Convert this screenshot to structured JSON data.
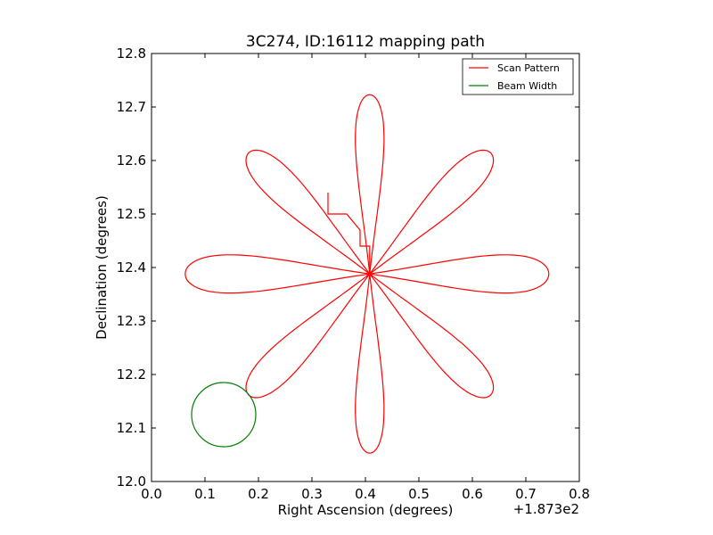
{
  "chart_data": {
    "type": "line",
    "title": "3C274, ID:16112 mapping path",
    "xlabel": "Right Ascension (degrees)",
    "ylabel": "Declination (degrees)",
    "x_offset_label": "+1.873e2",
    "xlim": [
      0.0,
      0.8
    ],
    "ylim": [
      12.0,
      12.8
    ],
    "x_ticks": [
      0.0,
      0.1,
      0.2,
      0.3,
      0.4,
      0.5,
      0.6,
      0.7,
      0.8
    ],
    "x_tick_labels": [
      "0.0",
      "0.1",
      "0.2",
      "0.3",
      "0.4",
      "0.5",
      "0.6",
      "0.7",
      "0.8"
    ],
    "y_ticks": [
      12.0,
      12.1,
      12.2,
      12.3,
      12.4,
      12.5,
      12.6,
      12.7,
      12.8
    ],
    "y_tick_labels": [
      "12.0",
      "12.1",
      "12.2",
      "12.3",
      "12.4",
      "12.5",
      "12.6",
      "12.7",
      "12.8"
    ],
    "legend_position": "top-right",
    "grid": false,
    "series": [
      {
        "name": "Scan Pattern",
        "color": "#ff0000",
        "petals": [
          {
            "angle_deg": 90,
            "length": 0.335,
            "width": 0.03
          },
          {
            "angle_deg": 45,
            "length": 0.32,
            "width": 0.035
          },
          {
            "angle_deg": 0,
            "length": 0.335,
            "width": 0.04
          },
          {
            "angle_deg": -45,
            "length": 0.32,
            "width": 0.035
          },
          {
            "angle_deg": -90,
            "length": 0.335,
            "width": 0.03
          },
          {
            "angle_deg": -135,
            "length": 0.32,
            "width": 0.035
          },
          {
            "angle_deg": 180,
            "length": 0.345,
            "width": 0.04
          },
          {
            "angle_deg": 135,
            "length": 0.32,
            "width": 0.035
          }
        ],
        "center": [
          0.408,
          12.388
        ],
        "step_points": [
          [
            0.408,
            12.388
          ],
          [
            0.408,
            12.44
          ],
          [
            0.39,
            12.44
          ],
          [
            0.39,
            12.47
          ],
          [
            0.365,
            12.5
          ],
          [
            0.345,
            12.5
          ],
          [
            0.33,
            12.5
          ],
          [
            0.33,
            12.54
          ]
        ]
      },
      {
        "name": "Beam Width",
        "color": "#008000",
        "circle": {
          "center": [
            0.135,
            12.125
          ],
          "radius_y": 0.06
        }
      }
    ]
  }
}
